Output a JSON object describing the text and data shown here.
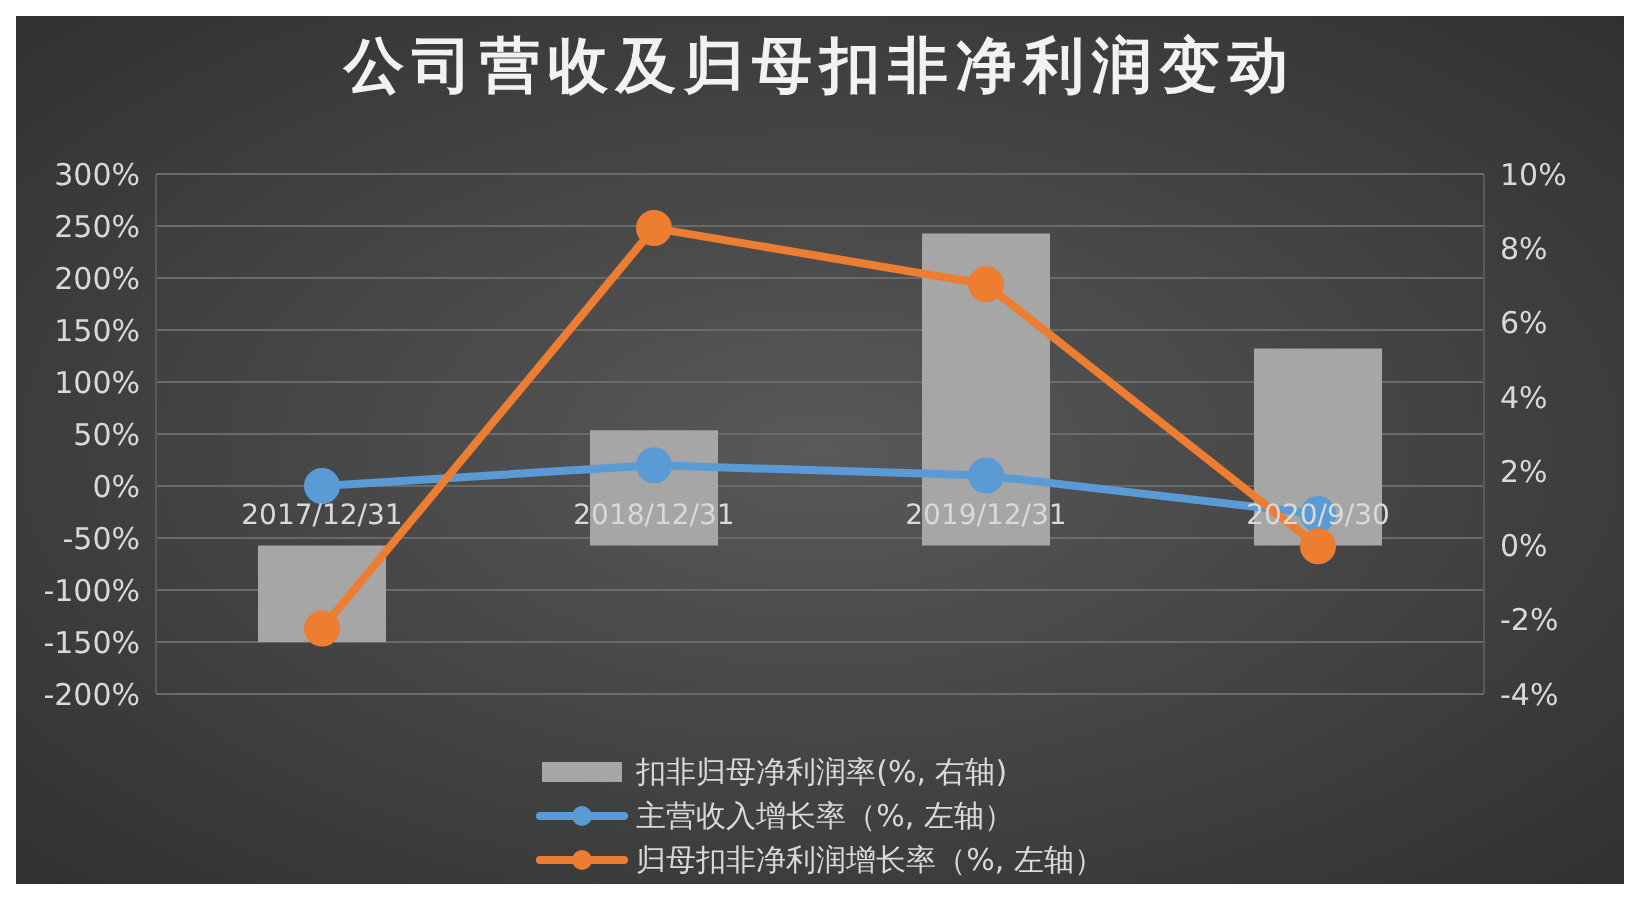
{
  "chart_data": {
    "type": "bar",
    "title": "公司营收及归母扣非净利润变动",
    "categories": [
      "2017/12/31",
      "2018/12/31",
      "2019/12/31",
      "2020/9/30"
    ],
    "series": [
      {
        "name": "扣非归母净利润率(%, 右轴)",
        "axis": "y2",
        "color": "#a6a6a6",
        "values": [
          -2.6,
          3.1,
          8.4,
          5.3
        ]
      },
      {
        "name": "主营收入增长率（%, 左轴）",
        "type": "line",
        "color": "#5b9bd5",
        "values": [
          0,
          20,
          10,
          -27
        ]
      },
      {
        "name": "归母扣非净利润增长率（%, 左轴）",
        "type": "line",
        "color": "#ed7d31",
        "values": [
          -137,
          248,
          194,
          -58
        ]
      }
    ],
    "ylim": [
      -200,
      300
    ],
    "yticks": [
      {
        "value": -200,
        "label": "-200%"
      },
      {
        "value": -150,
        "label": "-150%"
      },
      {
        "value": -100,
        "label": "-100%"
      },
      {
        "value": -50,
        "label": "-50%"
      },
      {
        "value": 0,
        "label": "0%"
      },
      {
        "value": 50,
        "label": "50%"
      },
      {
        "value": 100,
        "label": "100%"
      },
      {
        "value": 150,
        "label": "150%"
      },
      {
        "value": 200,
        "label": "200%"
      },
      {
        "value": 250,
        "label": "250%"
      },
      {
        "value": 300,
        "label": "300%"
      }
    ],
    "y2lim": [
      -4,
      10
    ],
    "y2ticks": [
      {
        "value": -4,
        "label": "-4%"
      },
      {
        "value": -2,
        "label": "-2%"
      },
      {
        "value": 0,
        "label": "0%"
      },
      {
        "value": 2,
        "label": "2%"
      },
      {
        "value": 4,
        "label": "4%"
      },
      {
        "value": 6,
        "label": "6%"
      },
      {
        "value": 8,
        "label": "8%"
      },
      {
        "value": 10,
        "label": "10%"
      }
    ],
    "grid": "y",
    "legend": "bottom",
    "marker": "circle"
  }
}
